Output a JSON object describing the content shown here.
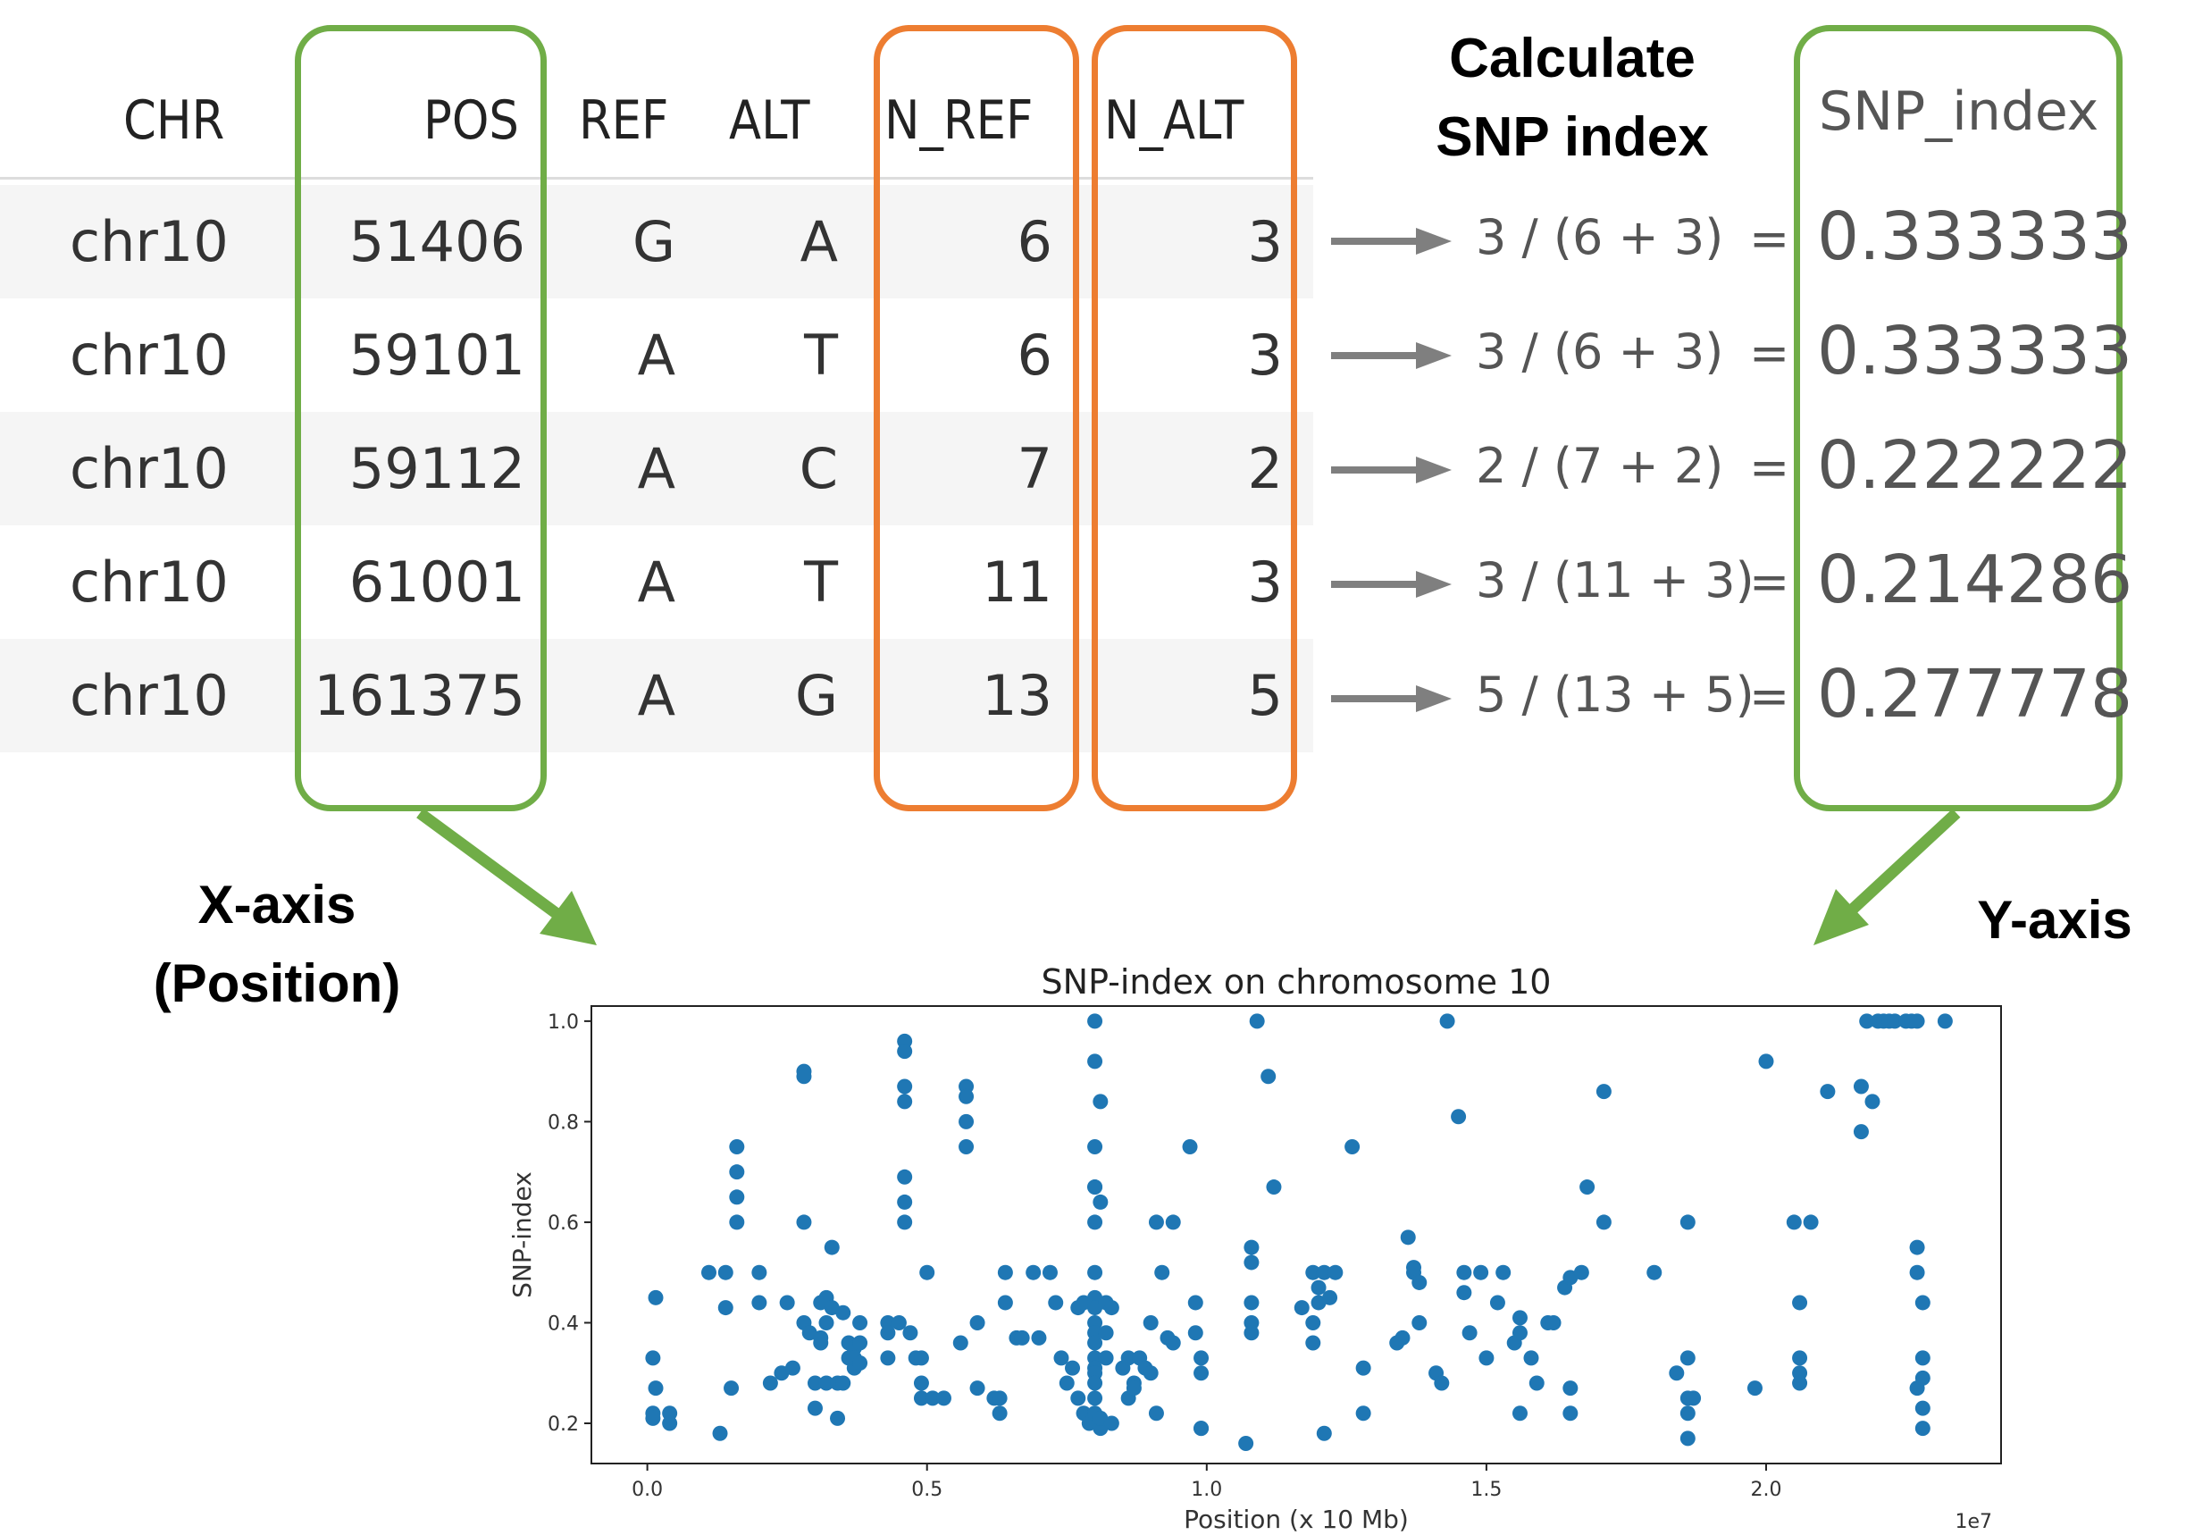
{
  "table": {
    "headers": {
      "chr": "CHR",
      "pos": "POS",
      "ref": "REF",
      "alt": "ALT",
      "n_ref": "N_REF",
      "n_alt": "N_ALT"
    },
    "rows": [
      {
        "chr": "chr10",
        "pos": "51406",
        "ref": "G",
        "alt": "A",
        "n_ref": "6",
        "n_alt": "3"
      },
      {
        "chr": "chr10",
        "pos": "59101",
        "ref": "A",
        "alt": "T",
        "n_ref": "6",
        "n_alt": "3"
      },
      {
        "chr": "chr10",
        "pos": "59112",
        "ref": "A",
        "alt": "C",
        "n_ref": "7",
        "n_alt": "2"
      },
      {
        "chr": "chr10",
        "pos": "61001",
        "ref": "A",
        "alt": "T",
        "n_ref": "11",
        "n_alt": "3"
      },
      {
        "chr": "chr10",
        "pos": "161375",
        "ref": "A",
        "alt": "G",
        "n_ref": "13",
        "n_alt": "5"
      }
    ]
  },
  "calc": {
    "title_line1": "Calculate",
    "title_line2": "SNP index",
    "formulas": [
      "3 / (6 + 3)",
      "3 / (6 + 3)",
      "2 / (7 + 2)",
      "3 / (11 + 3)",
      "5 / (13 + 5)"
    ],
    "equals": "="
  },
  "snp_column": {
    "header": "SNP_index",
    "values": [
      "0.333333",
      "0.333333",
      "0.222222",
      "0.214286",
      "0.277778"
    ]
  },
  "labels": {
    "x_axis_line1": "X-axis",
    "x_axis_line2": "(Position)",
    "y_axis": "Y-axis"
  },
  "colors": {
    "highlight_green": "#70ad47",
    "highlight_orange": "#ed7d31",
    "arrow_gray": "#7f7f7f",
    "points": "#1f77b4"
  },
  "chart_data": {
    "type": "scatter",
    "title": "SNP-index on chromosome 10",
    "xlabel": "Position (x 10 Mb)",
    "ylabel": "SNP-index",
    "x_offset_label": "1e7",
    "xlim": [
      -0.1,
      2.42
    ],
    "ylim": [
      0.12,
      1.03
    ],
    "x_ticks": [
      "0.0",
      "0.5",
      "1.0",
      "1.5",
      "2.0"
    ],
    "x_tick_values": [
      0.0,
      0.5,
      1.0,
      1.5,
      2.0
    ],
    "y_ticks": [
      "0.2",
      "0.4",
      "0.6",
      "0.8",
      "1.0"
    ],
    "y_tick_values": [
      0.2,
      0.4,
      0.6,
      0.8,
      1.0
    ],
    "grid": false,
    "points": [
      [
        0.01,
        0.33
      ],
      [
        0.01,
        0.22
      ],
      [
        0.01,
        0.21
      ],
      [
        0.015,
        0.45
      ],
      [
        0.015,
        0.27
      ],
      [
        0.04,
        0.22
      ],
      [
        0.04,
        0.2
      ],
      [
        0.11,
        0.5
      ],
      [
        0.13,
        0.18
      ],
      [
        0.14,
        0.5
      ],
      [
        0.14,
        0.43
      ],
      [
        0.15,
        0.27
      ],
      [
        0.16,
        0.6
      ],
      [
        0.16,
        0.65
      ],
      [
        0.16,
        0.7
      ],
      [
        0.16,
        0.75
      ],
      [
        0.2,
        0.5
      ],
      [
        0.2,
        0.44
      ],
      [
        0.22,
        0.28
      ],
      [
        0.24,
        0.3
      ],
      [
        0.25,
        0.44
      ],
      [
        0.26,
        0.31
      ],
      [
        0.28,
        0.9
      ],
      [
        0.28,
        0.89
      ],
      [
        0.28,
        0.6
      ],
      [
        0.28,
        0.4
      ],
      [
        0.29,
        0.38
      ],
      [
        0.3,
        0.23
      ],
      [
        0.3,
        0.28
      ],
      [
        0.31,
        0.36
      ],
      [
        0.31,
        0.44
      ],
      [
        0.31,
        0.37
      ],
      [
        0.32,
        0.45
      ],
      [
        0.32,
        0.4
      ],
      [
        0.32,
        0.28
      ],
      [
        0.33,
        0.43
      ],
      [
        0.33,
        0.55
      ],
      [
        0.34,
        0.28
      ],
      [
        0.34,
        0.21
      ],
      [
        0.35,
        0.42
      ],
      [
        0.35,
        0.28
      ],
      [
        0.36,
        0.36
      ],
      [
        0.36,
        0.33
      ],
      [
        0.37,
        0.31
      ],
      [
        0.37,
        0.35
      ],
      [
        0.37,
        0.33
      ],
      [
        0.38,
        0.4
      ],
      [
        0.38,
        0.36
      ],
      [
        0.38,
        0.32
      ],
      [
        0.43,
        0.4
      ],
      [
        0.43,
        0.38
      ],
      [
        0.43,
        0.33
      ],
      [
        0.45,
        0.4
      ],
      [
        0.46,
        0.96
      ],
      [
        0.46,
        0.94
      ],
      [
        0.46,
        0.87
      ],
      [
        0.46,
        0.84
      ],
      [
        0.46,
        0.69
      ],
      [
        0.46,
        0.64
      ],
      [
        0.46,
        0.6
      ],
      [
        0.47,
        0.38
      ],
      [
        0.48,
        0.33
      ],
      [
        0.49,
        0.33
      ],
      [
        0.49,
        0.28
      ],
      [
        0.49,
        0.25
      ],
      [
        0.5,
        0.5
      ],
      [
        0.51,
        0.25
      ],
      [
        0.53,
        0.25
      ],
      [
        0.56,
        0.36
      ],
      [
        0.57,
        0.87
      ],
      [
        0.57,
        0.85
      ],
      [
        0.57,
        0.8
      ],
      [
        0.57,
        0.75
      ],
      [
        0.59,
        0.4
      ],
      [
        0.59,
        0.27
      ],
      [
        0.62,
        0.25
      ],
      [
        0.63,
        0.22
      ],
      [
        0.63,
        0.25
      ],
      [
        0.64,
        0.44
      ],
      [
        0.64,
        0.5
      ],
      [
        0.66,
        0.37
      ],
      [
        0.67,
        0.37
      ],
      [
        0.69,
        0.5
      ],
      [
        0.7,
        0.37
      ],
      [
        0.72,
        0.5
      ],
      [
        0.73,
        0.44
      ],
      [
        0.74,
        0.33
      ],
      [
        0.75,
        0.28
      ],
      [
        0.76,
        0.31
      ],
      [
        0.77,
        0.25
      ],
      [
        0.77,
        0.43
      ],
      [
        0.78,
        0.22
      ],
      [
        0.78,
        0.44
      ],
      [
        0.79,
        0.2
      ],
      [
        0.8,
        1.0
      ],
      [
        0.8,
        0.92
      ],
      [
        0.8,
        0.75
      ],
      [
        0.8,
        0.67
      ],
      [
        0.8,
        0.67
      ],
      [
        0.8,
        0.6
      ],
      [
        0.8,
        0.5
      ],
      [
        0.8,
        0.45
      ],
      [
        0.8,
        0.43
      ],
      [
        0.8,
        0.4
      ],
      [
        0.8,
        0.38
      ],
      [
        0.8,
        0.36
      ],
      [
        0.8,
        0.33
      ],
      [
        0.8,
        0.31
      ],
      [
        0.8,
        0.3
      ],
      [
        0.8,
        0.28
      ],
      [
        0.8,
        0.25
      ],
      [
        0.8,
        0.22
      ],
      [
        0.81,
        0.84
      ],
      [
        0.81,
        0.64
      ],
      [
        0.81,
        0.19
      ],
      [
        0.81,
        0.21
      ],
      [
        0.82,
        0.44
      ],
      [
        0.82,
        0.38
      ],
      [
        0.82,
        0.33
      ],
      [
        0.83,
        0.2
      ],
      [
        0.83,
        0.43
      ],
      [
        0.85,
        0.31
      ],
      [
        0.86,
        0.33
      ],
      [
        0.86,
        0.25
      ],
      [
        0.87,
        0.28
      ],
      [
        0.87,
        0.27
      ],
      [
        0.88,
        0.33
      ],
      [
        0.89,
        0.31
      ],
      [
        0.9,
        0.4
      ],
      [
        0.9,
        0.3
      ],
      [
        0.91,
        0.22
      ],
      [
        0.91,
        0.6
      ],
      [
        0.92,
        0.5
      ],
      [
        0.93,
        0.37
      ],
      [
        0.94,
        0.36
      ],
      [
        0.94,
        0.6
      ],
      [
        0.97,
        0.75
      ],
      [
        0.98,
        0.44
      ],
      [
        0.98,
        0.38
      ],
      [
        0.99,
        0.33
      ],
      [
        0.99,
        0.3
      ],
      [
        0.99,
        0.19
      ],
      [
        0.99,
        0.19
      ],
      [
        1.07,
        0.16
      ],
      [
        1.08,
        0.55
      ],
      [
        1.08,
        0.52
      ],
      [
        1.08,
        0.44
      ],
      [
        1.08,
        0.4
      ],
      [
        1.08,
        0.38
      ],
      [
        1.09,
        1.0
      ],
      [
        1.11,
        0.89
      ],
      [
        1.12,
        0.67
      ],
      [
        1.17,
        0.43
      ],
      [
        1.19,
        0.5
      ],
      [
        1.19,
        0.4
      ],
      [
        1.19,
        0.36
      ],
      [
        1.2,
        0.47
      ],
      [
        1.2,
        0.44
      ],
      [
        1.21,
        0.18
      ],
      [
        1.21,
        0.5
      ],
      [
        1.22,
        0.45
      ],
      [
        1.23,
        0.5
      ],
      [
        1.26,
        0.75
      ],
      [
        1.28,
        0.31
      ],
      [
        1.28,
        0.22
      ],
      [
        1.34,
        0.36
      ],
      [
        1.35,
        0.37
      ],
      [
        1.36,
        0.57
      ],
      [
        1.37,
        0.5
      ],
      [
        1.37,
        0.51
      ],
      [
        1.38,
        0.48
      ],
      [
        1.38,
        0.4
      ],
      [
        1.41,
        0.3
      ],
      [
        1.42,
        0.28
      ],
      [
        1.43,
        1.0
      ],
      [
        1.45,
        0.81
      ],
      [
        1.46,
        0.5
      ],
      [
        1.46,
        0.46
      ],
      [
        1.47,
        0.38
      ],
      [
        1.49,
        0.5
      ],
      [
        1.5,
        0.33
      ],
      [
        1.52,
        0.44
      ],
      [
        1.53,
        0.5
      ],
      [
        1.55,
        0.36
      ],
      [
        1.56,
        0.41
      ],
      [
        1.56,
        0.38
      ],
      [
        1.56,
        0.22
      ],
      [
        1.58,
        0.33
      ],
      [
        1.59,
        0.28
      ],
      [
        1.61,
        0.4
      ],
      [
        1.62,
        0.4
      ],
      [
        1.64,
        0.47
      ],
      [
        1.65,
        0.27
      ],
      [
        1.65,
        0.22
      ],
      [
        1.65,
        0.49
      ],
      [
        1.67,
        0.5
      ],
      [
        1.68,
        0.67
      ],
      [
        1.71,
        0.6
      ],
      [
        1.71,
        0.86
      ],
      [
        1.8,
        0.5
      ],
      [
        1.84,
        0.3
      ],
      [
        1.86,
        0.6
      ],
      [
        1.86,
        0.33
      ],
      [
        1.86,
        0.25
      ],
      [
        1.86,
        0.22
      ],
      [
        1.87,
        0.25
      ],
      [
        1.86,
        0.17
      ],
      [
        1.98,
        0.27
      ],
      [
        2.0,
        0.92
      ],
      [
        2.05,
        0.6
      ],
      [
        2.06,
        0.44
      ],
      [
        2.06,
        0.33
      ],
      [
        2.06,
        0.3
      ],
      [
        2.06,
        0.28
      ],
      [
        2.08,
        0.6
      ],
      [
        2.11,
        0.86
      ],
      [
        2.17,
        0.87
      ],
      [
        2.17,
        0.78
      ],
      [
        2.18,
        1.0
      ],
      [
        2.19,
        0.84
      ],
      [
        2.2,
        1.0
      ],
      [
        2.21,
        1.0
      ],
      [
        2.22,
        1.0
      ],
      [
        2.23,
        1.0
      ],
      [
        2.25,
        1.0
      ],
      [
        2.26,
        1.0
      ],
      [
        2.27,
        1.0
      ],
      [
        2.27,
        0.55
      ],
      [
        2.27,
        0.5
      ],
      [
        2.27,
        0.27
      ],
      [
        2.28,
        0.44
      ],
      [
        2.28,
        0.33
      ],
      [
        2.28,
        0.29
      ],
      [
        2.28,
        0.23
      ],
      [
        2.28,
        0.19
      ],
      [
        2.32,
        1.0
      ]
    ]
  }
}
